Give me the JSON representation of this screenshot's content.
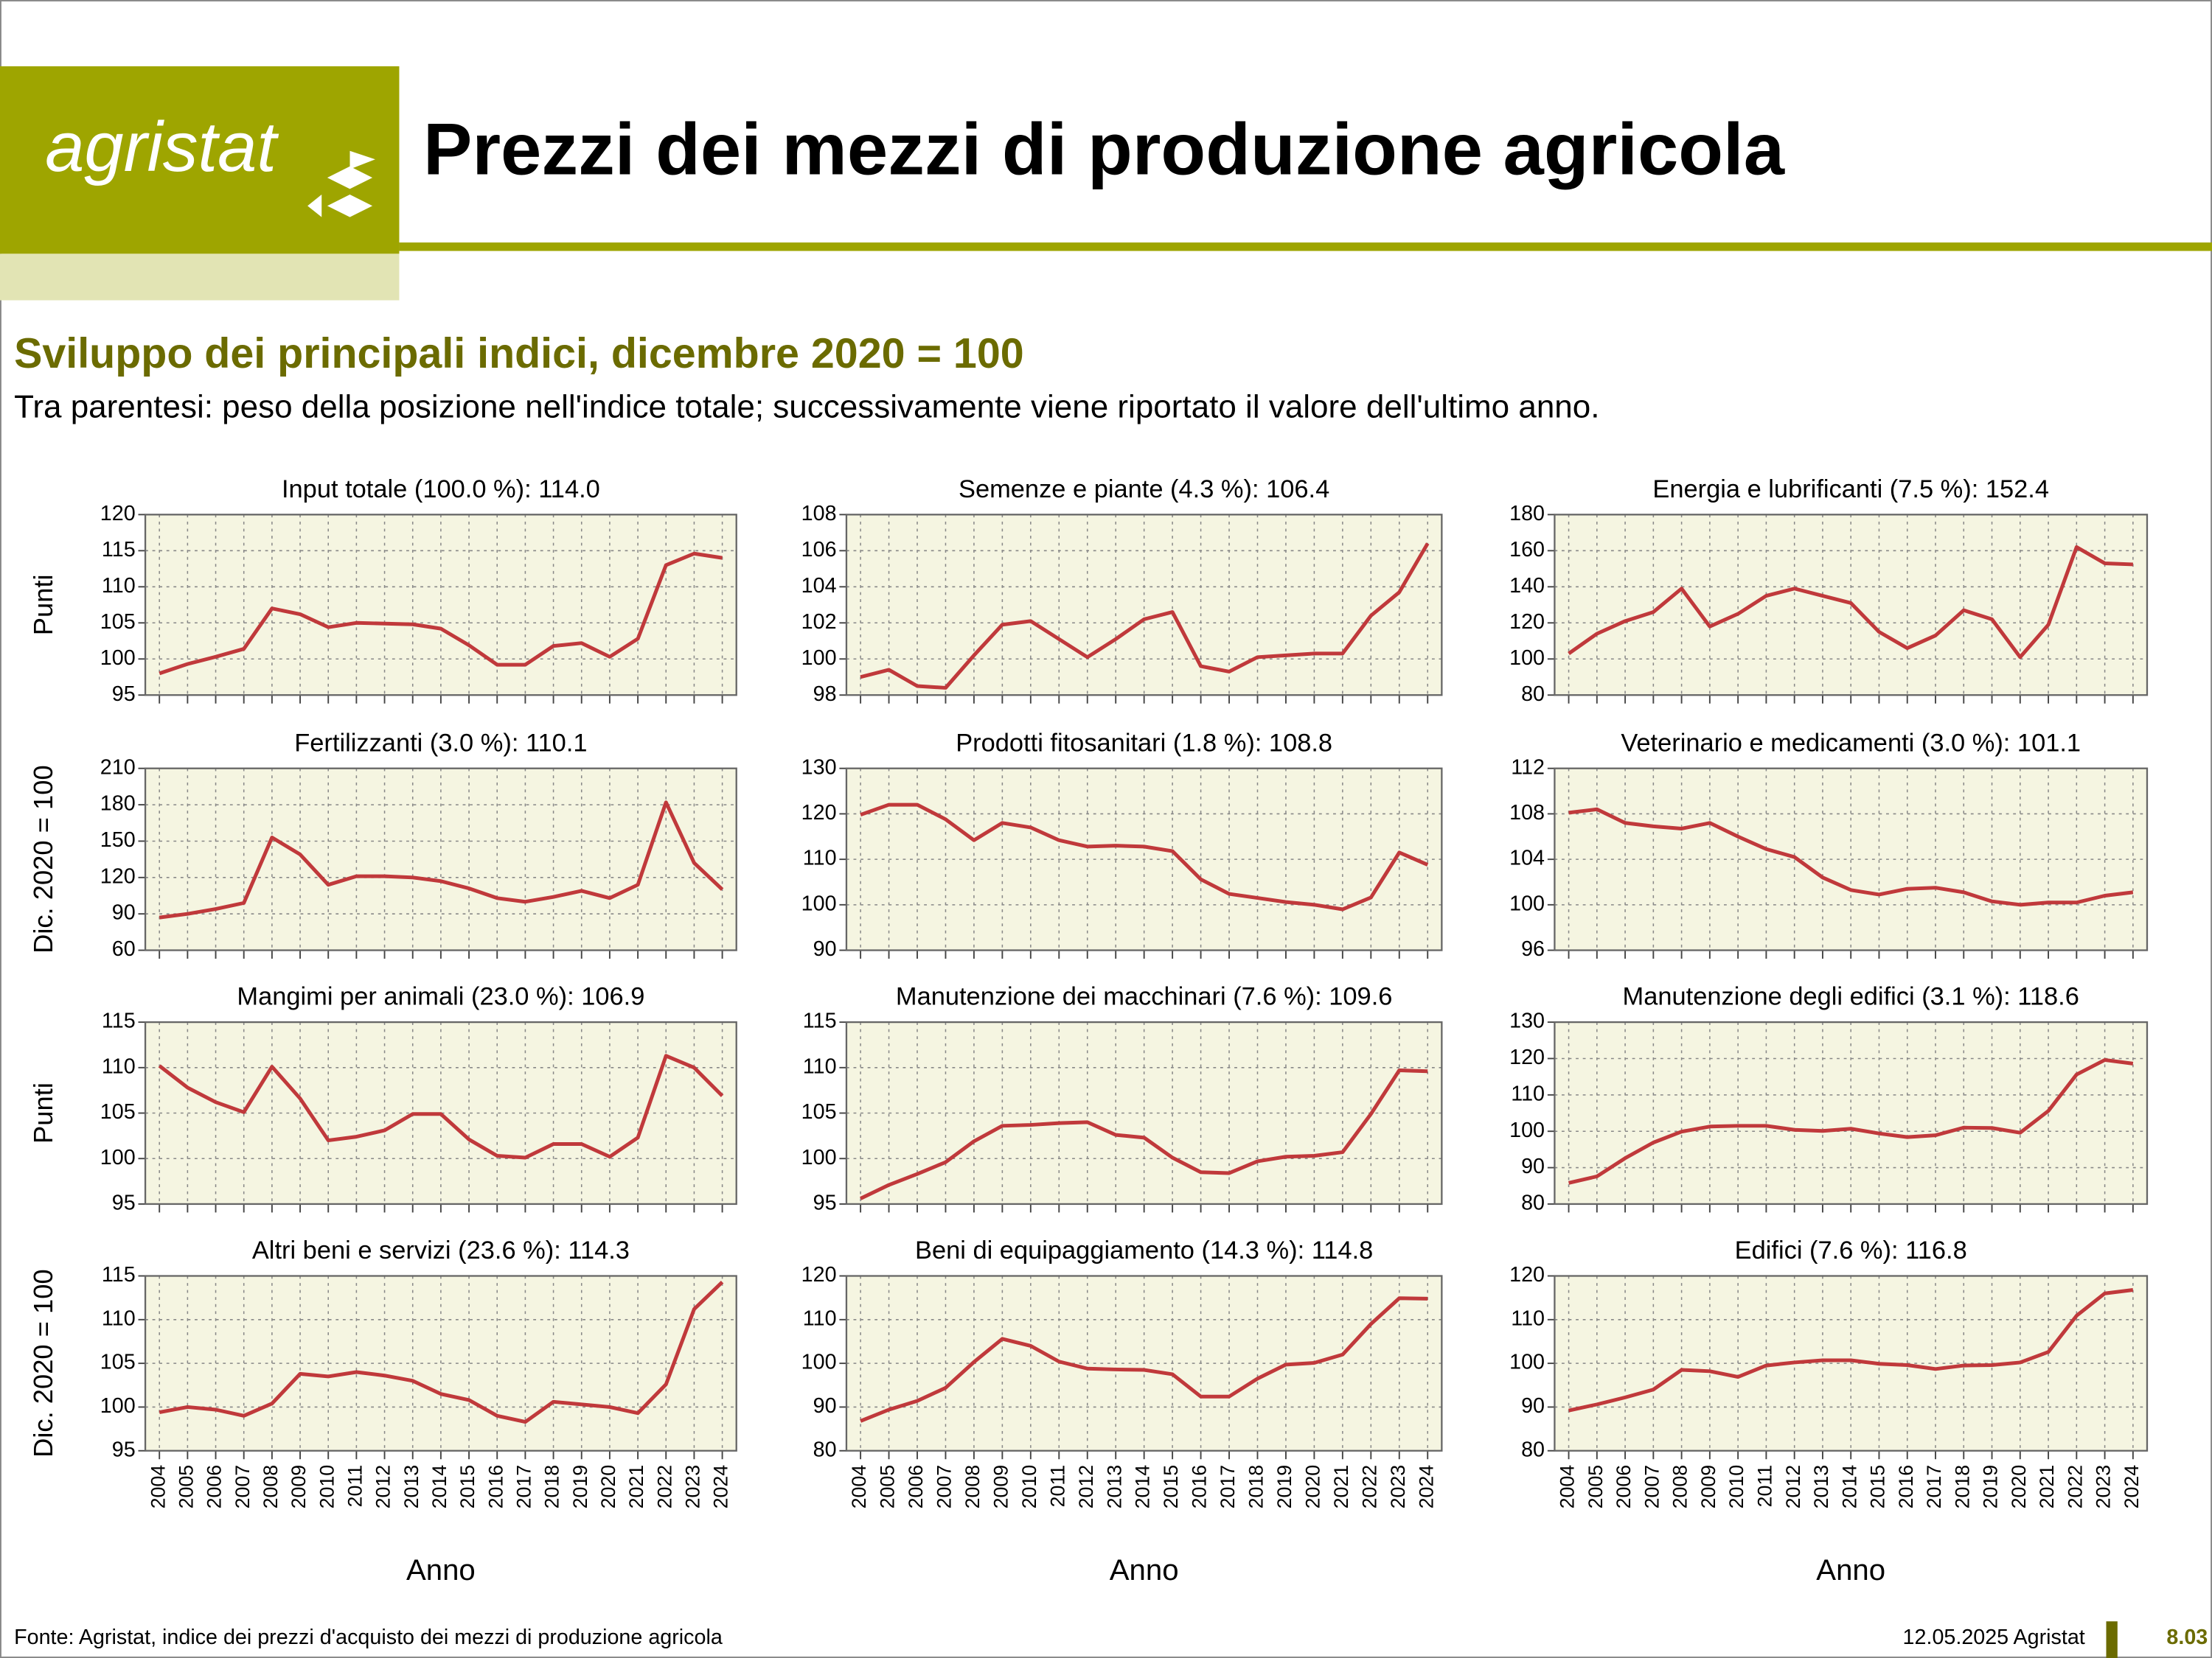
{
  "page": {
    "logo": "agristat",
    "title": "Prezzi dei mezzi di produzione agricola",
    "subtitle": "Sviluppo dei principali indici, dicembre 2020 = 100",
    "note": "Tra parentesi: peso della posizione nell'indice totale; successivamente viene riportato il valore dell'ultimo anno.",
    "source": "Fonte: Agristat, indice dei prezzi d'acquisto dei mezzi di produzione agricola",
    "date": "12.05.2025 Agristat",
    "page_number": "8.03"
  },
  "chart_data": [
    {
      "type": "line",
      "title": "Input totale (100.0 %): 114.0",
      "ylabel": "Punti",
      "x": [
        2004,
        2005,
        2006,
        2007,
        2008,
        2009,
        2010,
        2011,
        2012,
        2013,
        2014,
        2015,
        2016,
        2017,
        2018,
        2019,
        2020,
        2021,
        2022,
        2023,
        2024
      ],
      "xlim": [
        2004,
        2024
      ],
      "values": [
        98.0,
        99.3,
        100.3,
        101.4,
        107.0,
        106.2,
        104.4,
        105.0,
        104.9,
        104.8,
        104.2,
        101.9,
        99.2,
        99.2,
        101.8,
        102.2,
        100.3,
        102.8,
        113.0,
        114.6,
        114.0
      ],
      "color": "#c0393b",
      "ylim": [
        95,
        120
      ],
      "yticks": [
        95,
        100,
        105,
        110,
        115,
        120
      ],
      "grid": true
    },
    {
      "type": "line",
      "title": "Semenze e piante (4.3 %): 106.4",
      "x": [
        2004,
        2005,
        2006,
        2007,
        2008,
        2009,
        2010,
        2011,
        2012,
        2013,
        2014,
        2015,
        2016,
        2017,
        2018,
        2019,
        2020,
        2021,
        2022,
        2023,
        2024
      ],
      "xlim": [
        2004,
        2024
      ],
      "values": [
        99.0,
        99.4,
        98.5,
        98.4,
        100.2,
        101.9,
        102.1,
        101.1,
        100.1,
        101.1,
        102.2,
        102.6,
        99.6,
        99.3,
        100.1,
        100.2,
        100.3,
        100.3,
        102.4,
        103.7,
        106.4
      ],
      "color": "#c0393b",
      "ylim": [
        98,
        108
      ],
      "yticks": [
        98,
        100,
        102,
        104,
        106,
        108
      ],
      "grid": true
    },
    {
      "type": "line",
      "title": "Energia e lubrificanti (7.5 %): 152.4",
      "x": [
        2004,
        2005,
        2006,
        2007,
        2008,
        2009,
        2010,
        2011,
        2012,
        2013,
        2014,
        2015,
        2016,
        2017,
        2018,
        2019,
        2020,
        2021,
        2022,
        2023,
        2024
      ],
      "xlim": [
        2004,
        2024
      ],
      "values": [
        103,
        114,
        121,
        126,
        139,
        118,
        125,
        135,
        139,
        135,
        131,
        115,
        106,
        113,
        127,
        122,
        101,
        119,
        162,
        153,
        152.4
      ],
      "color": "#c0393b",
      "ylim": [
        80,
        180
      ],
      "yticks": [
        80,
        100,
        120,
        140,
        160,
        180
      ],
      "grid": true
    },
    {
      "type": "line",
      "title": "Fertilizzanti (3.0 %): 110.1",
      "ylabel": "Dic. 2020 = 100",
      "x": [
        2004,
        2005,
        2006,
        2007,
        2008,
        2009,
        2010,
        2011,
        2012,
        2013,
        2014,
        2015,
        2016,
        2017,
        2018,
        2019,
        2020,
        2021,
        2022,
        2023,
        2024
      ],
      "xlim": [
        2004,
        2024
      ],
      "values": [
        87,
        90,
        94,
        99,
        153,
        139,
        114,
        121,
        121,
        120,
        117,
        111,
        103,
        100,
        104,
        109,
        103,
        114,
        182,
        132,
        110.1
      ],
      "color": "#c0393b",
      "ylim": [
        60,
        210
      ],
      "yticks": [
        60,
        90,
        120,
        150,
        180,
        210
      ],
      "grid": true
    },
    {
      "type": "line",
      "title": "Prodotti fitosanitari (1.8 %): 108.8",
      "x": [
        2004,
        2005,
        2006,
        2007,
        2008,
        2009,
        2010,
        2011,
        2012,
        2013,
        2014,
        2015,
        2016,
        2017,
        2018,
        2019,
        2020,
        2021,
        2022,
        2023,
        2024
      ],
      "xlim": [
        2004,
        2024
      ],
      "values": [
        119.8,
        122.0,
        122.0,
        118.8,
        114.2,
        118.0,
        117.0,
        114.2,
        112.8,
        113.0,
        112.8,
        111.8,
        105.6,
        102.4,
        101.5,
        100.6,
        100.0,
        99.0,
        101.6,
        111.5,
        108.8
      ],
      "color": "#c0393b",
      "ylim": [
        90,
        130
      ],
      "yticks": [
        90,
        100,
        110,
        120,
        130
      ],
      "grid": true
    },
    {
      "type": "line",
      "title": "Veterinario e medicamenti (3.0 %): 101.1",
      "x": [
        2004,
        2005,
        2006,
        2007,
        2008,
        2009,
        2010,
        2011,
        2012,
        2013,
        2014,
        2015,
        2016,
        2017,
        2018,
        2019,
        2020,
        2021,
        2022,
        2023,
        2024
      ],
      "xlim": [
        2004,
        2024
      ],
      "values": [
        108.1,
        108.4,
        107.2,
        106.9,
        106.7,
        107.2,
        106.0,
        104.9,
        104.2,
        102.4,
        101.3,
        100.9,
        101.4,
        101.5,
        101.1,
        100.3,
        100.0,
        100.2,
        100.2,
        100.8,
        101.1
      ],
      "color": "#c0393b",
      "ylim": [
        96,
        112
      ],
      "yticks": [
        96,
        100,
        104,
        108,
        112
      ],
      "grid": true
    },
    {
      "type": "line",
      "title": "Mangimi per animali (23.0 %): 106.9",
      "ylabel": "Punti",
      "x": [
        2004,
        2005,
        2006,
        2007,
        2008,
        2009,
        2010,
        2011,
        2012,
        2013,
        2014,
        2015,
        2016,
        2017,
        2018,
        2019,
        2020,
        2021,
        2022,
        2023,
        2024
      ],
      "xlim": [
        2004,
        2024
      ],
      "values": [
        110.2,
        107.8,
        106.2,
        105.1,
        110.1,
        106.6,
        102.0,
        102.4,
        103.1,
        104.9,
        104.9,
        102.1,
        100.3,
        100.1,
        101.6,
        101.6,
        100.2,
        102.3,
        111.3,
        110.0,
        106.9
      ],
      "color": "#c0393b",
      "ylim": [
        95,
        115
      ],
      "yticks": [
        95,
        100,
        105,
        110,
        115
      ],
      "grid": true
    },
    {
      "type": "line",
      "title": "Manutenzione dei macchinari (7.6 %): 109.6",
      "x": [
        2004,
        2005,
        2006,
        2007,
        2008,
        2009,
        2010,
        2011,
        2012,
        2013,
        2014,
        2015,
        2016,
        2017,
        2018,
        2019,
        2020,
        2021,
        2022,
        2023,
        2024
      ],
      "xlim": [
        2004,
        2024
      ],
      "values": [
        95.6,
        97.1,
        98.3,
        99.6,
        101.9,
        103.6,
        103.7,
        103.9,
        104.0,
        102.6,
        102.3,
        100.1,
        98.5,
        98.4,
        99.7,
        100.2,
        100.3,
        100.7,
        104.9,
        109.7,
        109.6
      ],
      "color": "#c0393b",
      "ylim": [
        95,
        115
      ],
      "yticks": [
        95,
        100,
        105,
        110,
        115
      ],
      "grid": true
    },
    {
      "type": "line",
      "title": "Manutenzione degli edifici (3.1 %): 118.6",
      "x": [
        2004,
        2005,
        2006,
        2007,
        2008,
        2009,
        2010,
        2011,
        2012,
        2013,
        2014,
        2015,
        2016,
        2017,
        2018,
        2019,
        2020,
        2021,
        2022,
        2023,
        2024
      ],
      "xlim": [
        2004,
        2024
      ],
      "values": [
        85.8,
        87.6,
        92.6,
        96.9,
        99.9,
        101.3,
        101.5,
        101.5,
        100.4,
        100.1,
        100.7,
        99.4,
        98.4,
        98.9,
        101.0,
        100.9,
        99.6,
        105.6,
        115.6,
        119.6,
        118.6
      ],
      "color": "#c0393b",
      "ylim": [
        80,
        130
      ],
      "yticks": [
        80,
        90,
        100,
        110,
        120,
        130
      ],
      "grid": true
    },
    {
      "type": "line",
      "title": "Altri beni e servizi (23.6 %): 114.3",
      "ylabel": "Dic. 2020 = 100",
      "xlabel": "Anno",
      "x": [
        2004,
        2005,
        2006,
        2007,
        2008,
        2009,
        2010,
        2011,
        2012,
        2013,
        2014,
        2015,
        2016,
        2017,
        2018,
        2019,
        2020,
        2021,
        2022,
        2023,
        2024
      ],
      "xlim": [
        2004,
        2024
      ],
      "values": [
        99.4,
        100.0,
        99.7,
        99.0,
        100.4,
        103.8,
        103.5,
        104.0,
        103.6,
        103.0,
        101.5,
        100.8,
        99.0,
        98.3,
        100.6,
        100.3,
        100.0,
        99.3,
        102.6,
        111.2,
        114.3
      ],
      "color": "#c0393b",
      "ylim": [
        95,
        115
      ],
      "yticks": [
        95,
        100,
        105,
        110,
        115
      ],
      "grid": true
    },
    {
      "type": "line",
      "title": "Beni di equipaggiamento (14.3 %): 114.8",
      "xlabel": "Anno",
      "x": [
        2004,
        2005,
        2006,
        2007,
        2008,
        2009,
        2010,
        2011,
        2012,
        2013,
        2014,
        2015,
        2016,
        2017,
        2018,
        2019,
        2020,
        2021,
        2022,
        2023,
        2024
      ],
      "xlim": [
        2004,
        2024
      ],
      "values": [
        86.8,
        89.4,
        91.4,
        94.4,
        100.3,
        105.6,
        104.0,
        100.4,
        98.8,
        98.6,
        98.5,
        97.5,
        92.4,
        92.4,
        96.5,
        99.7,
        100.1,
        102.0,
        109.0,
        114.9,
        114.8
      ],
      "color": "#c0393b",
      "ylim": [
        80,
        120
      ],
      "yticks": [
        80,
        90,
        100,
        110,
        120
      ],
      "grid": true
    },
    {
      "type": "line",
      "title": "Edifici (7.6 %): 116.8",
      "xlabel": "Anno",
      "x": [
        2004,
        2005,
        2006,
        2007,
        2008,
        2009,
        2010,
        2011,
        2012,
        2013,
        2014,
        2015,
        2016,
        2017,
        2018,
        2019,
        2020,
        2021,
        2022,
        2023,
        2024
      ],
      "xlim": [
        2004,
        2024
      ],
      "values": [
        89.2,
        90.6,
        92.2,
        94.0,
        98.5,
        98.2,
        96.9,
        99.5,
        100.2,
        100.7,
        100.7,
        99.9,
        99.6,
        98.7,
        99.5,
        99.6,
        100.2,
        102.6,
        110.9,
        116.0,
        116.8
      ],
      "color": "#c0393b",
      "ylim": [
        80,
        120
      ],
      "yticks": [
        80,
        90,
        100,
        110,
        120
      ],
      "grid": true
    }
  ]
}
